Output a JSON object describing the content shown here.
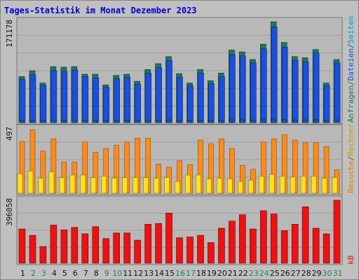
{
  "title": "Tages-Statistik im Monat Dezember 2023",
  "colors": {
    "background": "#c0c0c0",
    "panel_bg": "#b8b8b8",
    "grid": "#a0a0a0",
    "anfragen": "#1f7a4a",
    "dateien": "#1a4fe0",
    "seiten": "#0060a0",
    "besuche": "#ff8a1a",
    "rechner": "#ffe020",
    "kb": "#ee1111",
    "title": "#0000cc",
    "day_weekday": "#111111",
    "day_weekend": "#1a8a4a"
  },
  "legend_top": [
    "Anfragen",
    "Dateien",
    "Seiten"
  ],
  "legend_mid": [
    "Besuche",
    "Rechner"
  ],
  "legend_bottom": [
    "kB"
  ],
  "chart_data": [
    {
      "type": "bar",
      "panel": "top",
      "ymax_label": "171178",
      "ylim": [
        0,
        171178
      ],
      "categories": [
        "1",
        "2",
        "3",
        "4",
        "5",
        "6",
        "7",
        "8",
        "9",
        "10",
        "11",
        "12",
        "13",
        "14",
        "15",
        "16",
        "17",
        "18",
        "19",
        "20",
        "21",
        "22",
        "23",
        "24",
        "25",
        "26",
        "27",
        "28",
        "29",
        "30",
        "31"
      ],
      "series": [
        {
          "name": "Anfragen",
          "values": [
            78000,
            88000,
            67000,
            95000,
            94000,
            95000,
            82000,
            82000,
            64000,
            80000,
            82000,
            70000,
            90000,
            100000,
            112000,
            83000,
            67000,
            90000,
            71000,
            84000,
            123000,
            120000,
            107000,
            133000,
            171000,
            136000,
            112000,
            110000,
            124000,
            67000,
            107000
          ]
        },
        {
          "name": "Dateien",
          "values": [
            73000,
            81000,
            63000,
            88000,
            86000,
            89000,
            78000,
            76000,
            60000,
            74000,
            77000,
            65000,
            84000,
            93000,
            105000,
            77000,
            62000,
            84000,
            66000,
            78000,
            115000,
            113000,
            101000,
            125000,
            162000,
            128000,
            106000,
            103000,
            118000,
            63000,
            101000
          ]
        },
        {
          "name": "Seiten",
          "values": [
            3500,
            3800,
            3200,
            4000,
            3900,
            4000,
            3600,
            3600,
            3100,
            3500,
            3700,
            3300,
            3900,
            4200,
            4600,
            3700,
            3200,
            3900,
            3300,
            3700,
            4800,
            4700,
            4400,
            5200,
            6200,
            5300,
            4600,
            4500,
            5000,
            3200,
            4500
          ]
        }
      ]
    },
    {
      "type": "bar",
      "panel": "middle",
      "ymax_label": "497",
      "ylim": [
        0,
        497
      ],
      "categories": [
        "1",
        "2",
        "3",
        "4",
        "5",
        "6",
        "7",
        "8",
        "9",
        "10",
        "11",
        "12",
        "13",
        "14",
        "15",
        "16",
        "17",
        "18",
        "19",
        "20",
        "21",
        "22",
        "23",
        "24",
        "25",
        "26",
        "27",
        "28",
        "29",
        "30",
        "31"
      ],
      "series": [
        {
          "name": "Besuche",
          "values": [
            400,
            490,
            325,
            420,
            240,
            240,
            395,
            315,
            345,
            370,
            395,
            425,
            425,
            225,
            200,
            250,
            220,
            410,
            380,
            420,
            345,
            215,
            185,
            395,
            420,
            450,
            410,
            390,
            390,
            360,
            180
          ]
        },
        {
          "name": "Rechner",
          "values": [
            150,
            170,
            115,
            165,
            120,
            140,
            140,
            120,
            130,
            115,
            120,
            120,
            120,
            115,
            120,
            90,
            140,
            140,
            110,
            115,
            110,
            90,
            100,
            130,
            145,
            130,
            125,
            130,
            130,
            115,
            120
          ]
        }
      ]
    },
    {
      "type": "bar",
      "panel": "bottom",
      "ymax_label": "396058",
      "ylim": [
        0,
        396058
      ],
      "categories": [
        "1",
        "2",
        "3",
        "4",
        "5",
        "6",
        "7",
        "8",
        "9",
        "10",
        "11",
        "12",
        "13",
        "14",
        "15",
        "16",
        "17",
        "18",
        "19",
        "20",
        "21",
        "22",
        "23",
        "24",
        "25",
        "26",
        "27",
        "28",
        "29",
        "30",
        "31"
      ],
      "series": [
        {
          "name": "kB",
          "values": [
            215000,
            175000,
            105000,
            240000,
            210000,
            225000,
            185000,
            230000,
            155000,
            190000,
            190000,
            145000,
            245000,
            250000,
            315000,
            160000,
            165000,
            175000,
            130000,
            220000,
            265000,
            305000,
            215000,
            330000,
            310000,
            205000,
            245000,
            355000,
            220000,
            185000,
            396058
          ]
        }
      ]
    }
  ]
}
